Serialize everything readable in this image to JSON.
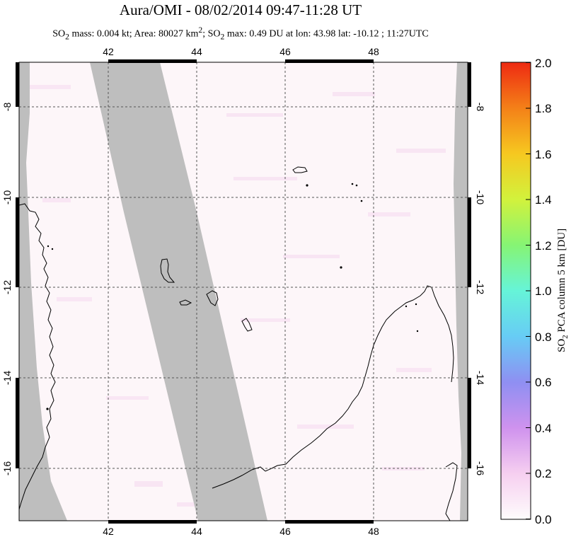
{
  "header": {
    "title": "Aura/OMI - 08/02/2014 09:47-11:28 UT",
    "subtitle": {
      "so2_a": "SO",
      "sub2_a": "2",
      "mass_area": " mass: 0.004 kt; Area: 80027 km",
      "sup2": "2",
      "sep": "; ",
      "so2_b": "SO",
      "sub2_b": "2",
      "rest": " max: 0.49 DU at lon: 43.98 lat: -10.12 ; 11:27UTC"
    }
  },
  "map": {
    "lon_labels": [
      "42",
      "44",
      "46",
      "48"
    ],
    "lat_labels": [
      "-8",
      "-10",
      "-12",
      "-14",
      "-16"
    ],
    "lon_range": [
      40,
      50
    ],
    "lat_range": [
      -17.1,
      -7.1
    ],
    "data_gap_color": "#bebebe",
    "coastline_color": "#000000"
  },
  "colorbar": {
    "title_a": "SO",
    "title_sub": "2",
    "title_b": " PCA column 5 km [DU]",
    "tick_labels": [
      "2.0",
      "1.8",
      "1.6",
      "1.4",
      "1.2",
      "1.0",
      "0.8",
      "0.6",
      "0.4",
      "0.2",
      "0.0"
    ],
    "range": [
      0.0,
      2.0
    ],
    "colors": [
      "#fefcfc",
      "#f6cff0",
      "#cf92ee",
      "#8f8ff2",
      "#67ccf5",
      "#66f4d8",
      "#86f474",
      "#d2f23c",
      "#f6c820",
      "#f48018",
      "#ee2a12"
    ]
  }
}
